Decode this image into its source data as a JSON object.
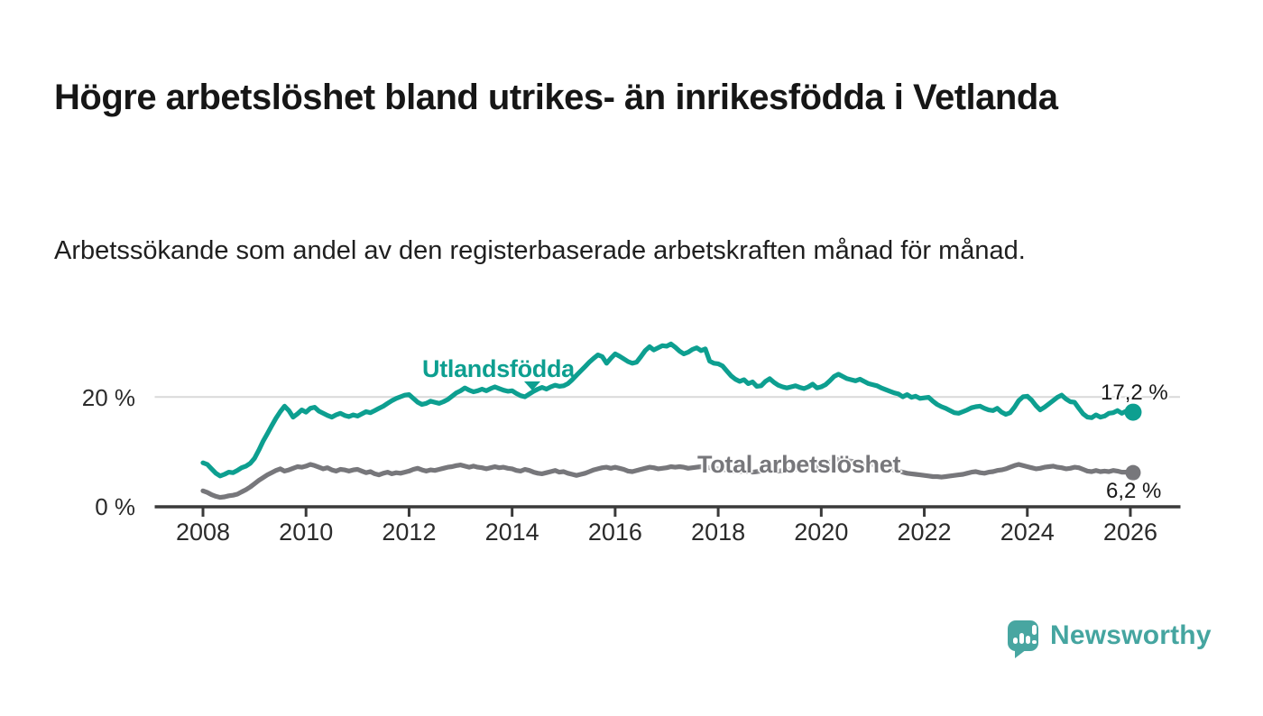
{
  "header": {
    "title": "Högre arbetslöshet bland utrikes- än inrikesfödda i Vetlanda",
    "subtitle": "Arbetssökande som andel av den registerbaserade arbetskraften månad för månad."
  },
  "footer": {
    "brand": "Newsworthy",
    "brand_color": "#45a5a0"
  },
  "chart_data": {
    "type": "line",
    "title": "Högre arbetslöshet bland utrikes- än inrikesfödda i Vetlanda",
    "subtitle": "Arbetssökande som andel av den registerbaserade arbetskraften månad för månad.",
    "x_unit": "year (monthly resolution)",
    "y_unit": "percent",
    "ylim": [
      0,
      30
    ],
    "grid": "single horizontal gridline at 20 %",
    "legend_position": "inline labels on lines",
    "y_tick_labels": [
      "20 %",
      "0 %"
    ],
    "y_tick_values": [
      20,
      0
    ],
    "x_tick_labels": [
      "2008",
      "2010",
      "2012",
      "2014",
      "2016",
      "2018",
      "2020",
      "2022",
      "2024",
      "2026"
    ],
    "end_labels": {
      "utlandsfodda": "17,2 %",
      "total": "6,2 %"
    },
    "series": [
      {
        "label": "Utlandsfödda",
        "color": "#0d9f90",
        "start_year": 2008,
        "step_months": 1,
        "end_value_label": "17,2 %",
        "values": [
          8.0,
          7.7,
          6.9,
          6.1,
          5.6,
          5.9,
          6.3,
          6.2,
          6.6,
          7.1,
          7.4,
          7.9,
          8.8,
          10.3,
          11.9,
          13.3,
          14.7,
          16.1,
          17.3,
          18.3,
          17.5,
          16.3,
          16.9,
          17.6,
          17.2,
          17.9,
          18.1,
          17.4,
          17.0,
          16.6,
          16.3,
          16.7,
          17.0,
          16.6,
          16.4,
          16.7,
          16.5,
          16.9,
          17.3,
          17.1,
          17.5,
          17.9,
          18.3,
          18.8,
          19.3,
          19.7,
          20.0,
          20.3,
          20.4,
          19.7,
          19.0,
          18.6,
          18.8,
          19.2,
          19.0,
          18.8,
          19.1,
          19.5,
          20.1,
          20.7,
          21.1,
          21.6,
          21.2,
          20.9,
          21.1,
          21.4,
          21.1,
          21.5,
          21.8,
          21.5,
          21.2,
          21.0,
          21.1,
          20.6,
          20.2,
          20.0,
          20.5,
          21.0,
          21.4,
          21.7,
          21.4,
          21.8,
          22.1,
          21.9,
          22.0,
          22.4,
          23.1,
          23.9,
          24.7,
          25.5,
          26.3,
          27.0,
          27.6,
          27.3,
          26.1,
          27.0,
          27.8,
          27.4,
          26.9,
          26.4,
          26.1,
          26.3,
          27.3,
          28.4,
          29.1,
          28.5,
          28.9,
          29.3,
          29.2,
          29.6,
          29.0,
          28.3,
          27.8,
          28.1,
          28.6,
          28.9,
          28.4,
          28.7,
          26.5,
          26.1,
          26.0,
          25.6,
          24.7,
          23.8,
          23.2,
          22.8,
          23.1,
          22.4,
          22.7,
          21.9,
          22.0,
          22.8,
          23.3,
          22.6,
          22.1,
          21.8,
          21.6,
          21.8,
          22.0,
          21.7,
          21.5,
          21.8,
          22.3,
          21.6,
          21.8,
          22.2,
          22.9,
          23.7,
          24.1,
          23.7,
          23.3,
          23.1,
          22.9,
          23.2,
          22.8,
          22.4,
          22.2,
          22.0,
          21.6,
          21.3,
          21.0,
          20.7,
          20.5,
          20.0,
          20.4,
          19.9,
          20.1,
          19.7,
          19.8,
          19.9,
          19.2,
          18.6,
          18.2,
          17.9,
          17.5,
          17.1,
          17.0,
          17.3,
          17.6,
          18.0,
          18.2,
          18.3,
          17.9,
          17.6,
          17.5,
          17.9,
          17.2,
          16.8,
          17.1,
          18.1,
          19.3,
          20.0,
          20.1,
          19.4,
          18.4,
          17.6,
          18.1,
          18.7,
          19.3,
          19.9,
          20.3,
          19.6,
          19.1,
          19.0,
          17.9,
          16.9,
          16.3,
          16.2,
          16.7,
          16.3,
          16.5,
          17.0,
          17.1,
          17.5,
          17.0,
          17.4,
          17.2
        ]
      },
      {
        "label": "Total arbetslöshet",
        "color": "#77777b",
        "start_year": 2008,
        "step_months": 1,
        "end_value_label": "6,2 %",
        "values": [
          2.9,
          2.6,
          2.2,
          1.9,
          1.7,
          1.8,
          2.0,
          2.1,
          2.3,
          2.7,
          3.1,
          3.6,
          4.2,
          4.8,
          5.3,
          5.8,
          6.2,
          6.6,
          6.9,
          6.5,
          6.7,
          7.0,
          7.3,
          7.2,
          7.4,
          7.7,
          7.5,
          7.2,
          6.9,
          7.1,
          6.7,
          6.5,
          6.8,
          6.7,
          6.5,
          6.7,
          6.8,
          6.5,
          6.2,
          6.4,
          6.0,
          5.8,
          6.1,
          6.3,
          6.0,
          6.2,
          6.1,
          6.3,
          6.5,
          6.8,
          7.0,
          6.7,
          6.5,
          6.7,
          6.6,
          6.8,
          7.0,
          7.2,
          7.3,
          7.5,
          7.6,
          7.4,
          7.2,
          7.4,
          7.2,
          7.1,
          6.9,
          7.1,
          7.3,
          7.1,
          7.2,
          7.0,
          6.9,
          6.6,
          6.5,
          6.8,
          6.6,
          6.3,
          6.1,
          6.0,
          6.2,
          6.4,
          6.6,
          6.3,
          6.4,
          6.1,
          5.9,
          5.7,
          5.9,
          6.1,
          6.4,
          6.7,
          6.9,
          7.1,
          7.2,
          7.0,
          7.2,
          7.0,
          6.8,
          6.5,
          6.4,
          6.6,
          6.8,
          7.0,
          7.2,
          7.1,
          6.9,
          7.0,
          7.1,
          7.3,
          7.2,
          7.3,
          7.2,
          7.0,
          7.1,
          7.2,
          7.3,
          7.2,
          7.1,
          7.0,
          6.9,
          6.8,
          6.7,
          6.6,
          6.5,
          6.4,
          6.5,
          6.4,
          6.3,
          6.4,
          6.5,
          6.6,
          6.7,
          6.6,
          6.5,
          6.6,
          6.7,
          6.8,
          6.9,
          6.8,
          6.9,
          7.0,
          7.1,
          7.3,
          7.5,
          7.7,
          8.1,
          8.5,
          8.6,
          8.5,
          8.4,
          8.3,
          8.2,
          8.0,
          7.9,
          7.8,
          7.7,
          7.5,
          7.3,
          7.1,
          6.9,
          6.7,
          6.5,
          6.3,
          6.1,
          6.0,
          5.9,
          5.8,
          5.7,
          5.6,
          5.5,
          5.5,
          5.4,
          5.5,
          5.6,
          5.7,
          5.8,
          5.9,
          6.1,
          6.3,
          6.4,
          6.2,
          6.1,
          6.3,
          6.4,
          6.6,
          6.7,
          6.9,
          7.2,
          7.5,
          7.7,
          7.5,
          7.3,
          7.1,
          6.9,
          7.0,
          7.2,
          7.3,
          7.4,
          7.2,
          7.1,
          6.9,
          7.0,
          7.2,
          7.1,
          6.8,
          6.5,
          6.4,
          6.6,
          6.4,
          6.5,
          6.4,
          6.6,
          6.5,
          6.3,
          6.3,
          6.2
        ]
      }
    ]
  }
}
